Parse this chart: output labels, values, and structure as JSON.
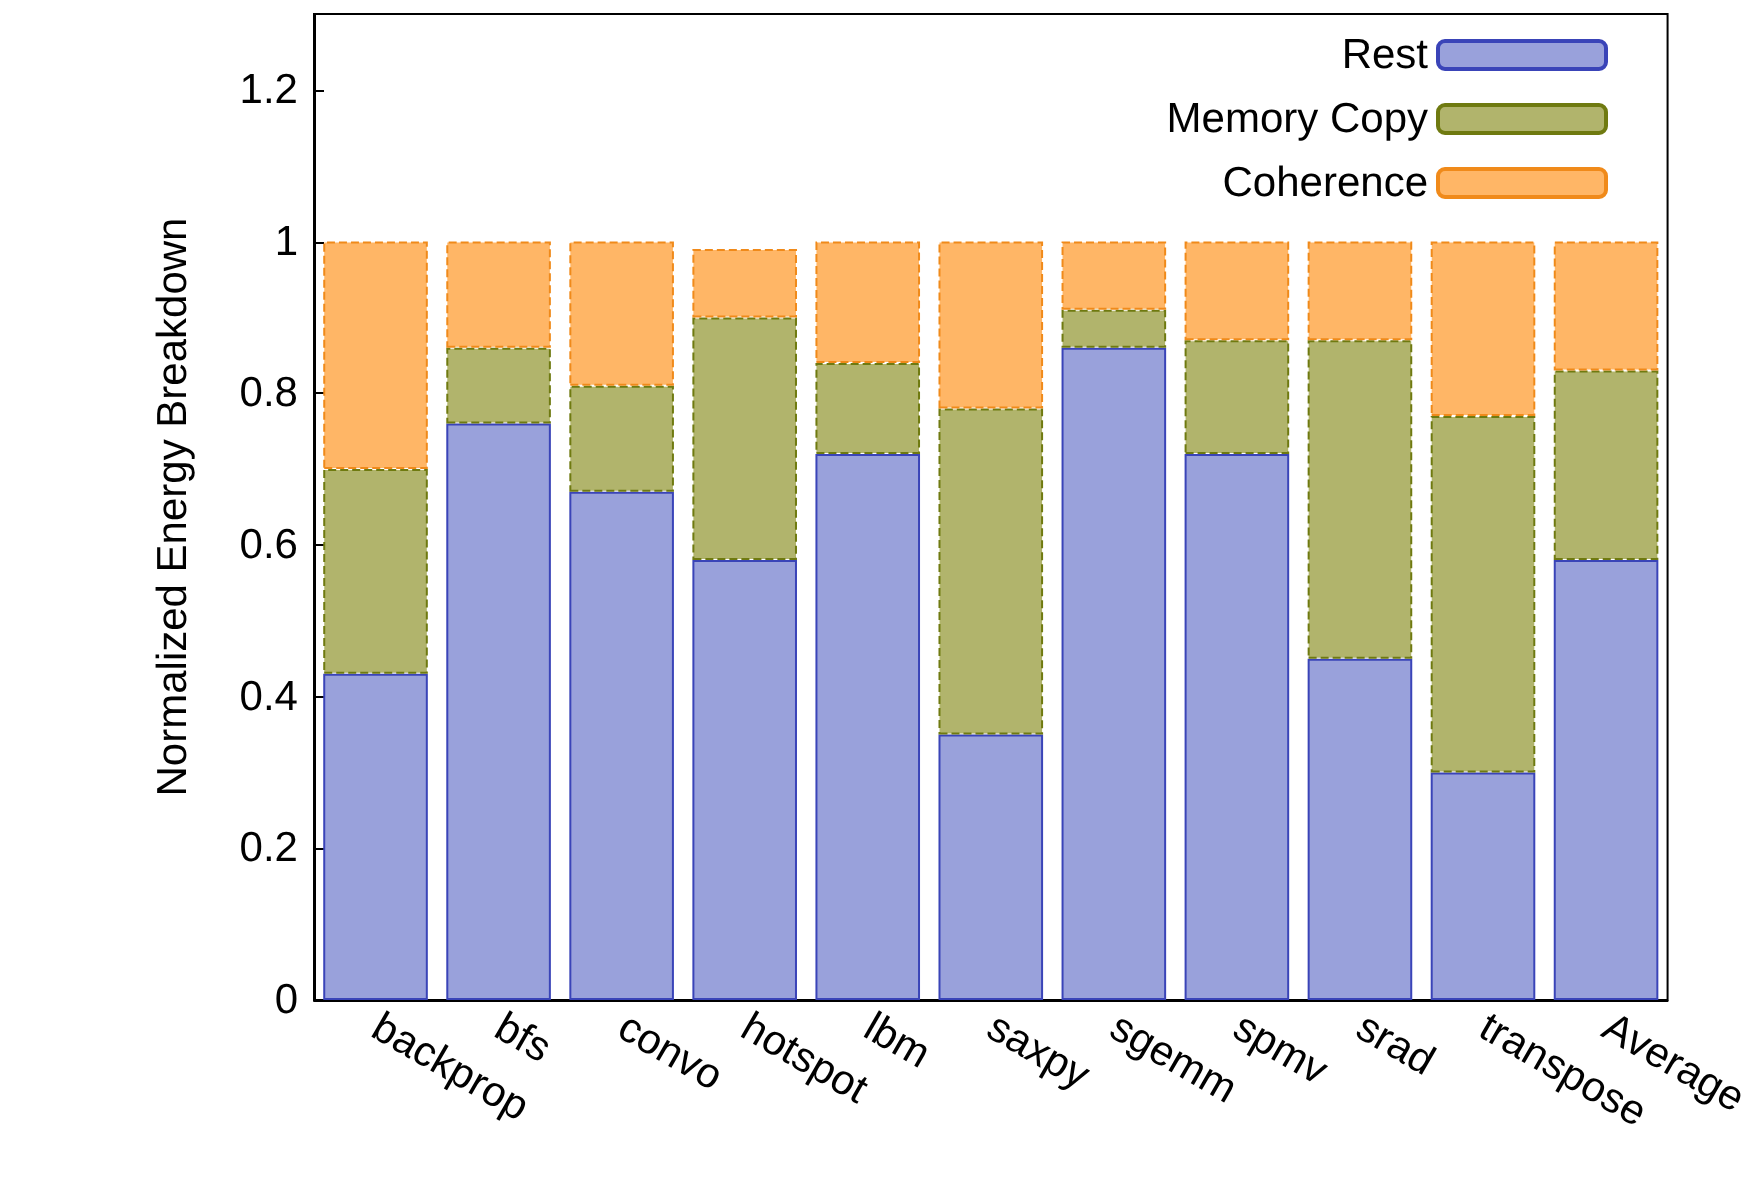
{
  "chart_data": {
    "type": "bar",
    "stacked": true,
    "ylabel": "Normalized Energy Breakdown",
    "categories": [
      "backprop",
      "bfs",
      "convo",
      "hotspot",
      "lbm",
      "saxpy",
      "sgemm",
      "spmv",
      "srad",
      "transpose",
      "Average"
    ],
    "series": [
      {
        "name": "Rest",
        "color": "#99a1db",
        "line_style": "solid",
        "values": [
          0.43,
          0.76,
          0.67,
          0.58,
          0.72,
          0.35,
          0.86,
          0.72,
          0.45,
          0.3,
          0.58
        ]
      },
      {
        "name": "Memory Copy",
        "color": "#b1b46c",
        "line_style": "dashed",
        "values": [
          0.27,
          0.1,
          0.14,
          0.32,
          0.12,
          0.43,
          0.05,
          0.15,
          0.42,
          0.47,
          0.25
        ]
      },
      {
        "name": "Coherence",
        "color": "#ffb666",
        "line_style": "dashed",
        "values": [
          0.3,
          0.14,
          0.19,
          0.09,
          0.16,
          0.22,
          0.09,
          0.13,
          0.13,
          0.23,
          0.17
        ]
      }
    ],
    "ylim": [
      0,
      1.3
    ],
    "yticks": [
      0,
      0.2,
      0.4,
      0.6,
      0.8,
      1,
      1.2
    ],
    "grid": false,
    "legend": "top right"
  }
}
